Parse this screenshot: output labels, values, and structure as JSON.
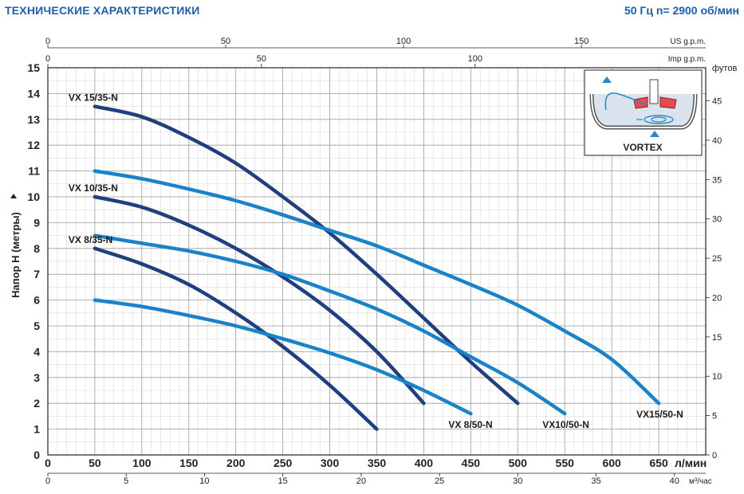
{
  "header": {
    "title": "ТЕХНИЧЕСКИЕ ХАРАКТЕРИСТИКИ",
    "spec": "50 Гц  n= 2900 об/мин"
  },
  "chart_data": {
    "type": "line",
    "ylabel": "Напор H (метры)",
    "xlabel": "л/мин",
    "xlim": [
      0,
      700
    ],
    "ylim": [
      0,
      15
    ],
    "x_ticks": [
      0,
      50,
      100,
      150,
      200,
      250,
      300,
      350,
      400,
      450,
      500,
      550,
      600,
      650
    ],
    "y_ticks": [
      0,
      1,
      2,
      3,
      4,
      5,
      6,
      7,
      8,
      9,
      10,
      11,
      12,
      13,
      14,
      15
    ],
    "grid": true,
    "secondary_axes": {
      "us_gpm": {
        "label": "US g.p.m.",
        "ticks": [
          0,
          50,
          100,
          150
        ]
      },
      "imp_gpm": {
        "label": "Imp g.p.m.",
        "ticks": [
          0,
          50,
          100
        ]
      },
      "m3h": {
        "label": "м³/час",
        "ticks": [
          0,
          5,
          10,
          15,
          20,
          25,
          30,
          35,
          40
        ]
      },
      "feet": {
        "label": "футов",
        "ticks": [
          0,
          5,
          10,
          15,
          20,
          25,
          30,
          35,
          40,
          45
        ]
      }
    },
    "series": [
      {
        "name": "VX 15/35-N",
        "color": "#1f3f7f",
        "x": [
          50,
          100,
          150,
          200,
          250,
          300,
          350,
          400,
          450,
          500
        ],
        "y": [
          13.5,
          13.1,
          12.3,
          11.3,
          10.0,
          8.6,
          7.0,
          5.3,
          3.6,
          2.0
        ]
      },
      {
        "name": "VX 10/35-N",
        "color": "#1f3f7f",
        "x": [
          50,
          100,
          150,
          200,
          250,
          300,
          350,
          400
        ],
        "y": [
          10.0,
          9.6,
          8.9,
          8.0,
          6.9,
          5.6,
          4.0,
          2.0
        ]
      },
      {
        "name": "VX 8/35-N",
        "color": "#1f3f7f",
        "x": [
          50,
          100,
          150,
          200,
          250,
          300,
          350
        ],
        "y": [
          8.0,
          7.4,
          6.6,
          5.5,
          4.2,
          2.7,
          1.0
        ]
      },
      {
        "name": "VX15/50-N",
        "color": "#1a82c8",
        "x": [
          50,
          100,
          150,
          200,
          250,
          300,
          350,
          400,
          450,
          500,
          550,
          600,
          650
        ],
        "y": [
          11.0,
          10.7,
          10.3,
          9.85,
          9.3,
          8.7,
          8.1,
          7.35,
          6.6,
          5.8,
          4.8,
          3.7,
          2.0
        ]
      },
      {
        "name": "VX10/50-N",
        "color": "#1a82c8",
        "x": [
          50,
          100,
          150,
          200,
          250,
          300,
          350,
          400,
          450,
          500,
          550
        ],
        "y": [
          8.5,
          8.2,
          7.9,
          7.5,
          7.0,
          6.35,
          5.65,
          4.8,
          3.8,
          2.8,
          1.6
        ]
      },
      {
        "name": "VX 8/50-N",
        "color": "#1a82c8",
        "x": [
          50,
          100,
          150,
          200,
          250,
          300,
          350,
          400,
          450
        ],
        "y": [
          6.0,
          5.75,
          5.4,
          5.0,
          4.5,
          3.95,
          3.3,
          2.5,
          1.6
        ]
      }
    ],
    "inset": {
      "label": "VORTEX"
    }
  }
}
